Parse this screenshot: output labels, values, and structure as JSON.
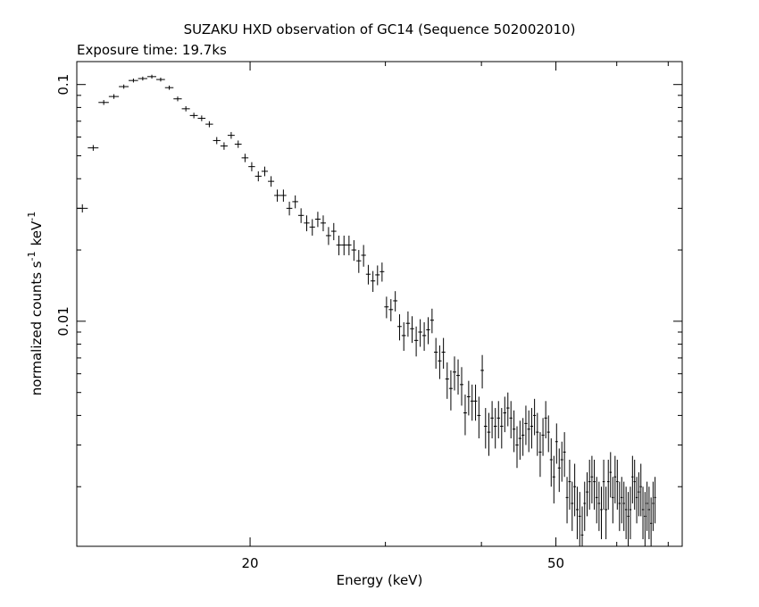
{
  "chart_data": {
    "type": "scatter",
    "title": "SUZAKU HXD observation of GC14 (Sequence 502002010)",
    "subtitle": "Exposure time: 19.7ks",
    "xlabel": "Energy (keV)",
    "ylabel_main": "normalized counts s",
    "ylabel_unit": "keV",
    "ylabel_exp": "-1",
    "x_scale": "log",
    "y_scale": "log",
    "xlim": [
      11.9,
      73
    ],
    "ylim": [
      0.00112,
      0.125
    ],
    "x_ticks": [
      {
        "value": 20,
        "label": "20"
      },
      {
        "value": 50,
        "label": "50"
      }
    ],
    "y_ticks": [
      {
        "value": 0.1,
        "label": "0.1"
      },
      {
        "value": 0.01,
        "label": "0.01"
      }
    ],
    "grid": false,
    "series": [
      {
        "points": [
          [
            12.1,
            0.03,
            0.0012
          ],
          [
            12.5,
            0.054,
            0.0015
          ],
          [
            12.9,
            0.084,
            0.002
          ],
          [
            13.3,
            0.089,
            0.002
          ],
          [
            13.7,
            0.098,
            0.002
          ],
          [
            14.1,
            0.104,
            0.002
          ],
          [
            14.5,
            0.106,
            0.002
          ],
          [
            14.9,
            0.108,
            0.002
          ],
          [
            15.3,
            0.105,
            0.002
          ],
          [
            15.7,
            0.097,
            0.002
          ],
          [
            16.1,
            0.087,
            0.002
          ],
          [
            16.5,
            0.079,
            0.002
          ],
          [
            16.9,
            0.074,
            0.002
          ],
          [
            17.3,
            0.072,
            0.002
          ],
          [
            17.7,
            0.068,
            0.002
          ],
          [
            18.1,
            0.058,
            0.002
          ],
          [
            18.5,
            0.055,
            0.002
          ],
          [
            18.9,
            0.061,
            0.002
          ],
          [
            19.3,
            0.056,
            0.002
          ],
          [
            19.7,
            0.049,
            0.002
          ],
          [
            20.1,
            0.045,
            0.002
          ],
          [
            20.5,
            0.041,
            0.002
          ],
          [
            20.9,
            0.043,
            0.002
          ],
          [
            21.3,
            0.039,
            0.002
          ],
          [
            21.7,
            0.034,
            0.002
          ],
          [
            22.1,
            0.034,
            0.002
          ],
          [
            22.5,
            0.03,
            0.002
          ],
          [
            22.9,
            0.032,
            0.002
          ],
          [
            23.3,
            0.028,
            0.002
          ],
          [
            23.7,
            0.026,
            0.002
          ],
          [
            24.1,
            0.025,
            0.002
          ],
          [
            24.5,
            0.027,
            0.002
          ],
          [
            24.9,
            0.026,
            0.002
          ],
          [
            25.3,
            0.023,
            0.002
          ],
          [
            25.7,
            0.024,
            0.002
          ],
          [
            26.1,
            0.021,
            0.002
          ],
          [
            26.5,
            0.021,
            0.002
          ],
          [
            26.9,
            0.021,
            0.002
          ],
          [
            27.3,
            0.02,
            0.002
          ],
          [
            27.7,
            0.018,
            0.002
          ],
          [
            28.1,
            0.019,
            0.002
          ],
          [
            28.5,
            0.0158,
            0.0015
          ],
          [
            28.9,
            0.0148,
            0.0015
          ],
          [
            29.3,
            0.0157,
            0.0015
          ],
          [
            29.7,
            0.0162,
            0.0015
          ],
          [
            30.1,
            0.0115,
            0.0012
          ],
          [
            30.5,
            0.0112,
            0.0012
          ],
          [
            30.9,
            0.0122,
            0.0012
          ],
          [
            31.3,
            0.0095,
            0.0012
          ],
          [
            31.7,
            0.0087,
            0.0012
          ],
          [
            32.1,
            0.0098,
            0.0012
          ],
          [
            32.5,
            0.0093,
            0.0012
          ],
          [
            32.9,
            0.0083,
            0.0012
          ],
          [
            33.3,
            0.009,
            0.0012
          ],
          [
            33.7,
            0.0087,
            0.0012
          ],
          [
            34.1,
            0.0092,
            0.0012
          ],
          [
            34.5,
            0.0101,
            0.0012
          ],
          [
            34.9,
            0.0074,
            0.0011
          ],
          [
            35.3,
            0.0068,
            0.0011
          ],
          [
            35.7,
            0.0074,
            0.0011
          ],
          [
            36.1,
            0.0057,
            0.001
          ],
          [
            36.5,
            0.0052,
            0.001
          ],
          [
            36.9,
            0.0061,
            0.001
          ],
          [
            37.3,
            0.0059,
            0.001
          ],
          [
            37.7,
            0.0054,
            0.001
          ],
          [
            38.1,
            0.0041,
            0.0008
          ],
          [
            38.5,
            0.0048,
            0.0008
          ],
          [
            38.9,
            0.0046,
            0.0008
          ],
          [
            39.3,
            0.0046,
            0.0008
          ],
          [
            39.7,
            0.004,
            0.0008
          ],
          [
            40.1,
            0.0062,
            0.001
          ],
          [
            40.5,
            0.0036,
            0.0007
          ],
          [
            40.9,
            0.0034,
            0.0007
          ],
          [
            41.3,
            0.0039,
            0.0007
          ],
          [
            41.7,
            0.0036,
            0.0007
          ],
          [
            42.1,
            0.0039,
            0.0007
          ],
          [
            42.5,
            0.0036,
            0.0007
          ],
          [
            42.9,
            0.0041,
            0.0007
          ],
          [
            43.3,
            0.0043,
            0.0007
          ],
          [
            43.7,
            0.0039,
            0.0007
          ],
          [
            44.1,
            0.0035,
            0.0007
          ],
          [
            44.5,
            0.003,
            0.0006
          ],
          [
            44.9,
            0.0032,
            0.0006
          ],
          [
            45.3,
            0.0033,
            0.0006
          ],
          [
            45.7,
            0.0037,
            0.0007
          ],
          [
            46.1,
            0.0035,
            0.0007
          ],
          [
            46.5,
            0.0036,
            0.0007
          ],
          [
            46.9,
            0.004,
            0.0007
          ],
          [
            47.3,
            0.0034,
            0.0007
          ],
          [
            47.7,
            0.0028,
            0.0006
          ],
          [
            48.1,
            0.0033,
            0.0006
          ],
          [
            48.5,
            0.0039,
            0.0007
          ],
          [
            48.9,
            0.0034,
            0.0006
          ],
          [
            49.3,
            0.0026,
            0.0006
          ],
          [
            49.7,
            0.0022,
            0.0005
          ],
          [
            50.1,
            0.0031,
            0.0006
          ],
          [
            50.5,
            0.0024,
            0.0005
          ],
          [
            50.9,
            0.0026,
            0.0005
          ],
          [
            51.3,
            0.0028,
            0.0006
          ],
          [
            51.7,
            0.0018,
            0.0004
          ],
          [
            52.1,
            0.0021,
            0.0005
          ],
          [
            52.5,
            0.0017,
            0.0004
          ],
          [
            52.9,
            0.002,
            0.0005
          ],
          [
            53.3,
            0.0016,
            0.0004
          ],
          [
            53.7,
            0.0015,
            0.0004
          ],
          [
            54.1,
            0.00125,
            0.0004
          ],
          [
            54.5,
            0.0017,
            0.0004
          ],
          [
            54.9,
            0.0019,
            0.0004
          ],
          [
            55.3,
            0.0021,
            0.0005
          ],
          [
            55.7,
            0.0022,
            0.0005
          ],
          [
            56.1,
            0.0021,
            0.0005
          ],
          [
            56.5,
            0.0018,
            0.0004
          ],
          [
            56.9,
            0.0017,
            0.0004
          ],
          [
            57.3,
            0.0016,
            0.0004
          ],
          [
            57.7,
            0.0021,
            0.0005
          ],
          [
            58.1,
            0.0016,
            0.0004
          ],
          [
            58.5,
            0.0021,
            0.0005
          ],
          [
            58.9,
            0.0023,
            0.0005
          ],
          [
            59.3,
            0.0018,
            0.0004
          ],
          [
            59.7,
            0.0022,
            0.0005
          ],
          [
            60.1,
            0.0021,
            0.0005
          ],
          [
            60.5,
            0.0017,
            0.0004
          ],
          [
            60.9,
            0.0018,
            0.0004
          ],
          [
            61.3,
            0.0017,
            0.0004
          ],
          [
            61.7,
            0.0016,
            0.0004
          ],
          [
            62.1,
            0.0015,
            0.0004
          ],
          [
            62.5,
            0.0016,
            0.0004
          ],
          [
            62.9,
            0.0022,
            0.0005
          ],
          [
            63.3,
            0.0021,
            0.0005
          ],
          [
            63.7,
            0.0018,
            0.0004
          ],
          [
            64.1,
            0.0019,
            0.0004
          ],
          [
            64.5,
            0.002,
            0.0005
          ],
          [
            64.9,
            0.0016,
            0.0004
          ],
          [
            65.3,
            0.0015,
            0.0004
          ],
          [
            65.7,
            0.0017,
            0.0004
          ],
          [
            66.1,
            0.0016,
            0.0004
          ],
          [
            66.5,
            0.0014,
            0.0004
          ],
          [
            66.9,
            0.0017,
            0.0004
          ],
          [
            67.3,
            0.0018,
            0.0004
          ]
        ],
        "point_format": [
          "energy_keV",
          "counts",
          "error"
        ],
        "color": "#000000"
      }
    ]
  }
}
